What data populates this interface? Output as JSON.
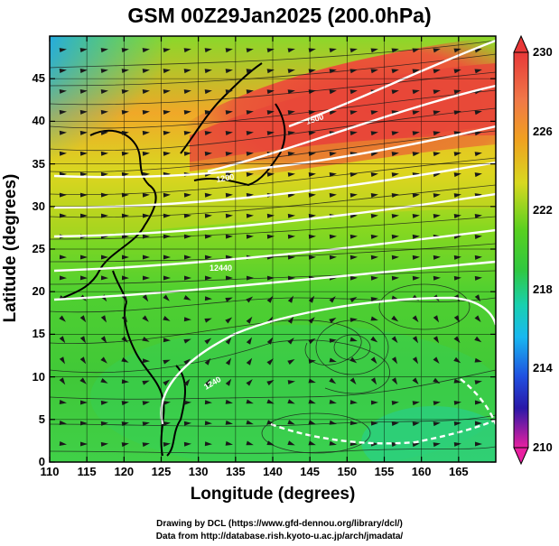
{
  "title": "GSM 00Z29Jan2025 (200.0hPa)",
  "x_axis": {
    "label": "Longitude (degrees)",
    "ticks": [
      "110",
      "115",
      "120",
      "125",
      "130",
      "135",
      "140",
      "145",
      "150",
      "155",
      "160",
      "165"
    ],
    "range": [
      110,
      170
    ]
  },
  "y_axis": {
    "label": "Latitude  (degrees)",
    "ticks": [
      "0",
      "5",
      "10",
      "15",
      "20",
      "25",
      "30",
      "35",
      "40",
      "45"
    ],
    "range": [
      0,
      50
    ]
  },
  "colorbar": {
    "ticks": [
      "230",
      "226",
      "222",
      "218",
      "214",
      "210"
    ],
    "range": [
      210,
      230
    ],
    "colors": [
      "#e8209c",
      "#c020c0",
      "#1a1ab0",
      "#2a6af0",
      "#18c8f0",
      "#20d890",
      "#30c830",
      "#7ada20",
      "#d8d820",
      "#f8a020",
      "#f05040",
      "#e03030"
    ]
  },
  "credits": {
    "line1": "Drawing by DCL (https://www.gfd-dennou.org/library/dcl/)",
    "line2": "Data from http://database.rish.kyoto-u.ac.jp/arch/jmadata/"
  },
  "contour_labels": [
    "1500",
    "1200",
    "12440",
    "1240"
  ],
  "field_colors": {
    "cold_nw": "#2a5ae8",
    "jet_core": "#e84838",
    "warm": "#f09a28",
    "mid": "#7ed020",
    "green": "#3ac840",
    "tropical": "#38d050"
  }
}
